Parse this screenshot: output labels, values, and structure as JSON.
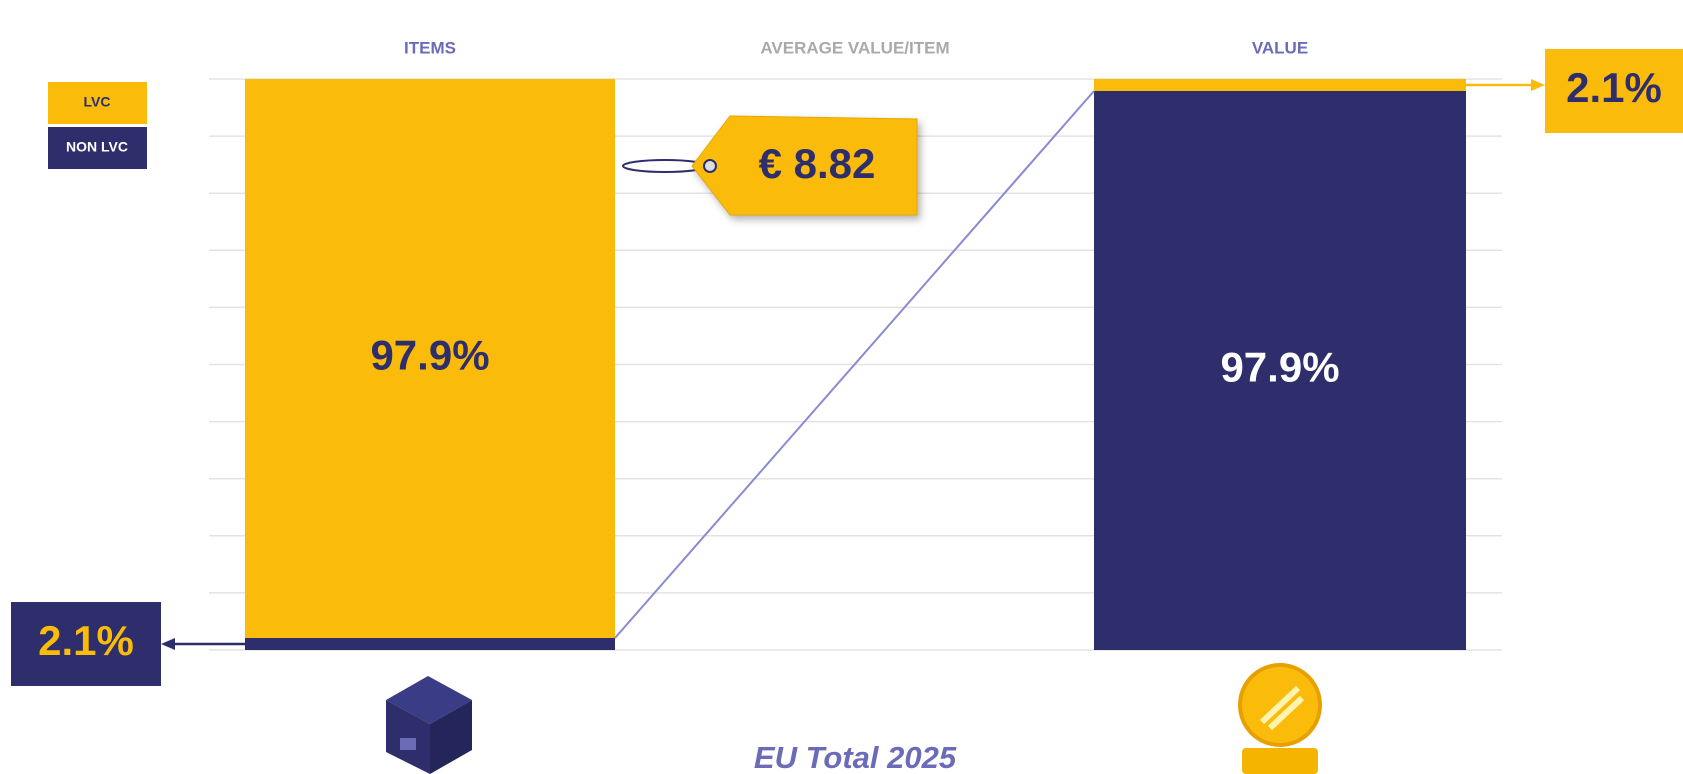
{
  "chart_data": {
    "type": "bar",
    "stacked": true,
    "title": "EU Total 2025",
    "annotations": [
      "AVERAGE VALUE/ITEM",
      "€ 8.82"
    ],
    "categories": [
      "ITEMS",
      "VALUE"
    ],
    "series": [
      {
        "name": "NON LVC",
        "color": "#2d2e6b",
        "values": [
          2.1,
          97.9
        ],
        "value_labels": [
          "2.1%",
          "97.9%"
        ]
      },
      {
        "name": "LVC",
        "color": "#fbbb0a",
        "values": [
          97.9,
          2.1
        ],
        "value_labels": [
          "97.9%",
          "2.1%"
        ]
      }
    ],
    "ylim": [
      0,
      100
    ],
    "yticks": [
      0,
      10,
      20,
      30,
      40,
      50,
      60,
      70,
      80,
      90,
      100
    ],
    "grid": true
  }
}
